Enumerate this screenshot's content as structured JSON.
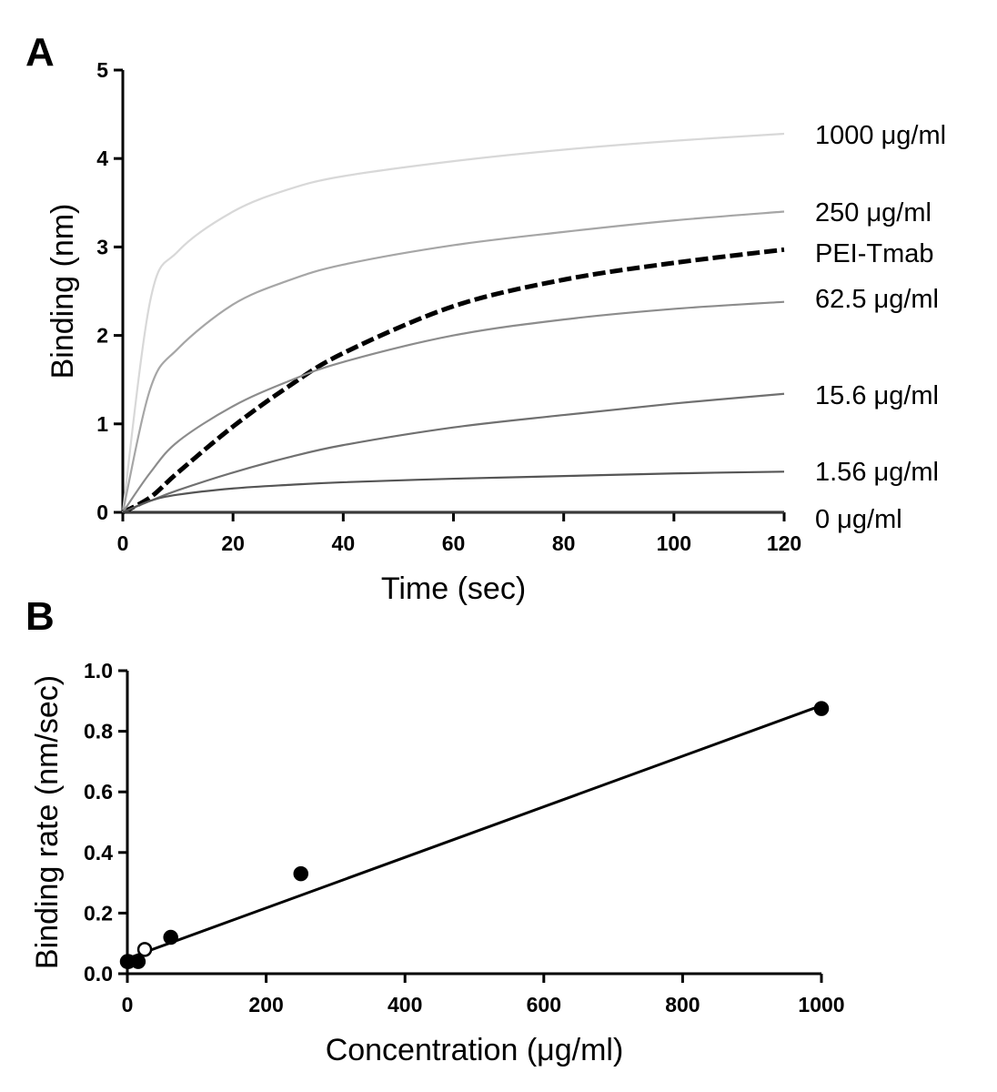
{
  "chart_data": [
    {
      "panel": "A",
      "type": "line",
      "title": "",
      "xlabel": "Time (sec)",
      "ylabel": "Binding (nm)",
      "xlim": [
        0,
        120
      ],
      "ylim": [
        0,
        5
      ],
      "xticks": [
        "0",
        "20",
        "40",
        "60",
        "80",
        "100",
        "120"
      ],
      "yticks": [
        "0",
        "1",
        "2",
        "3",
        "4",
        "5"
      ],
      "x": [
        0,
        5,
        10,
        20,
        30,
        40,
        60,
        80,
        100,
        120
      ],
      "series": [
        {
          "name": "1000 μg/ml",
          "color": "#d8d8d8",
          "dashed": false,
          "values": [
            0,
            2.4,
            2.95,
            3.4,
            3.65,
            3.8,
            3.97,
            4.1,
            4.2,
            4.28
          ]
        },
        {
          "name": "250 μg/ml",
          "color": "#a6a6a6",
          "dashed": false,
          "values": [
            0,
            1.4,
            1.85,
            2.35,
            2.62,
            2.8,
            3.02,
            3.17,
            3.3,
            3.4
          ]
        },
        {
          "name": "PEI-Tmab",
          "color": "#000000",
          "dashed": true,
          "values": [
            0,
            0.17,
            0.45,
            0.97,
            1.42,
            1.8,
            2.33,
            2.63,
            2.82,
            2.97
          ]
        },
        {
          "name": "62.5 μg/ml",
          "color": "#8c8c8c",
          "dashed": false,
          "values": [
            0,
            0.45,
            0.8,
            1.2,
            1.48,
            1.7,
            2.0,
            2.18,
            2.3,
            2.38
          ]
        },
        {
          "name": "15.6 μg/ml",
          "color": "#707070",
          "dashed": false,
          "values": [
            0,
            0.13,
            0.25,
            0.45,
            0.62,
            0.76,
            0.96,
            1.1,
            1.23,
            1.34
          ]
        },
        {
          "name": "1.56 μg/ml",
          "color": "#555555",
          "dashed": false,
          "values": [
            0,
            0.13,
            0.2,
            0.27,
            0.31,
            0.34,
            0.38,
            0.41,
            0.44,
            0.46
          ]
        },
        {
          "name": "0 μg/ml",
          "color": "#3a3a3a",
          "dashed": false,
          "values": [
            0,
            0,
            0,
            0,
            0,
            0,
            0,
            0,
            0,
            0
          ]
        }
      ]
    },
    {
      "panel": "B",
      "type": "scatter",
      "title": "",
      "xlabel": "Concentration (μg/ml)",
      "ylabel": "Binding rate (nm/sec)",
      "xlim": [
        0,
        1000
      ],
      "ylim": [
        0,
        1.0
      ],
      "xticks": [
        "0",
        "200",
        "400",
        "600",
        "800",
        "1000"
      ],
      "yticks": [
        "0.0",
        "0.2",
        "0.4",
        "0.6",
        "0.8",
        "1.0"
      ],
      "points": [
        {
          "x": 0,
          "y": 0.04,
          "filled": true
        },
        {
          "x": 1.56,
          "y": 0.04,
          "filled": true
        },
        {
          "x": 15.6,
          "y": 0.04,
          "filled": true
        },
        {
          "x": 25,
          "y": 0.08,
          "filled": false
        },
        {
          "x": 62.5,
          "y": 0.12,
          "filled": true
        },
        {
          "x": 250,
          "y": 0.33,
          "filled": true
        },
        {
          "x": 1000,
          "y": 0.875,
          "filled": true
        }
      ],
      "fit_line": {
        "x": [
          0,
          1000
        ],
        "y": [
          0.05,
          0.885
        ]
      }
    }
  ]
}
